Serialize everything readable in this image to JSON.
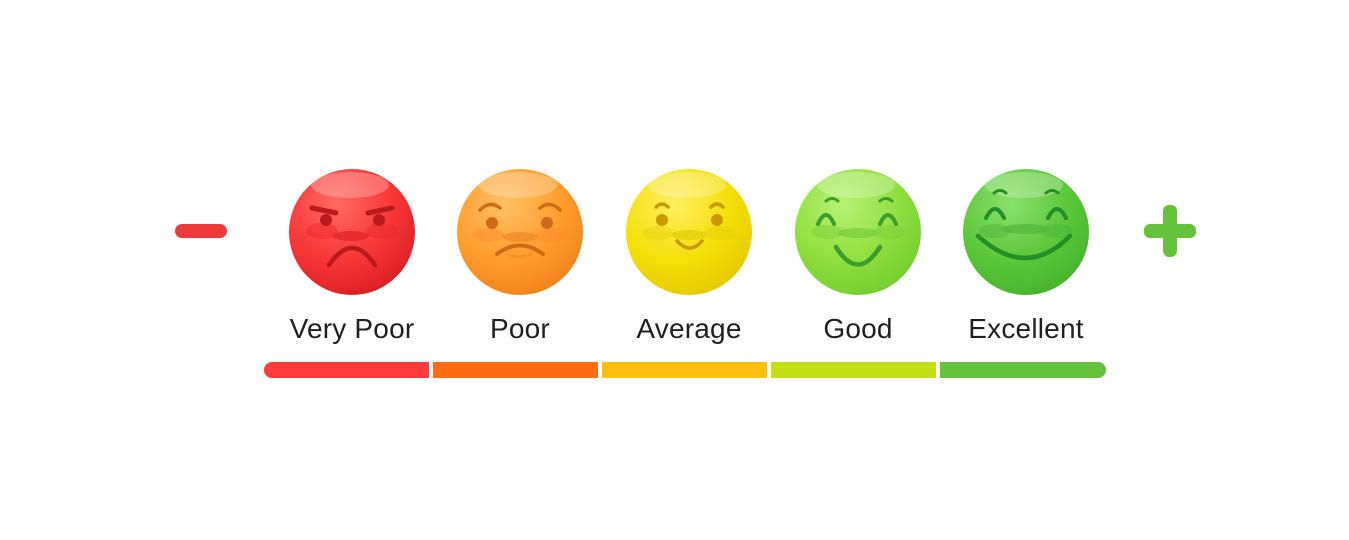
{
  "scale": {
    "minus_symbol": "−",
    "plus_symbol": "+",
    "levels": [
      {
        "label": "Very Poor",
        "color": "#ff3b3b",
        "bar_color": "#ff3b3b",
        "mood": "angry"
      },
      {
        "label": "Poor",
        "color": "#ffa12a",
        "bar_color": "#ff6c12",
        "mood": "sad"
      },
      {
        "label": "Average",
        "color": "#f2df08",
        "bar_color": "#ffc012",
        "mood": "neutral-smile"
      },
      {
        "label": "Good",
        "color": "#8fde3f",
        "bar_color": "#c5df17",
        "mood": "happy"
      },
      {
        "label": "Excellent",
        "color": "#58c83b",
        "bar_color": "#66c23b",
        "mood": "very-happy"
      }
    ]
  }
}
